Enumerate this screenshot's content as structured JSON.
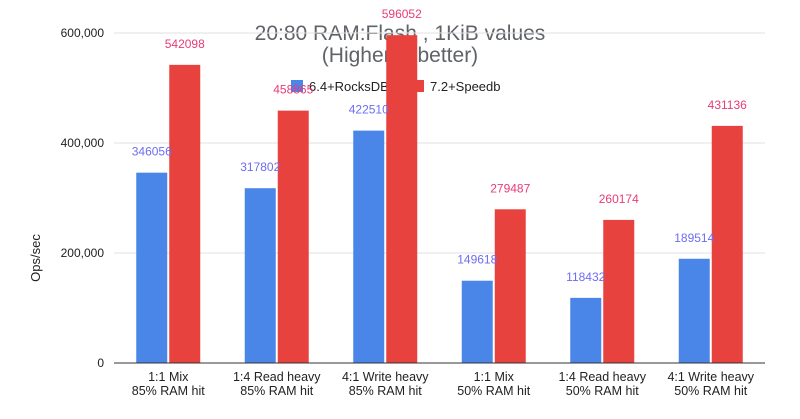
{
  "chart_data": {
    "type": "bar",
    "title": [
      "20:80 RAM:Flash , 1KiB values",
      "(Higher is better)"
    ],
    "ylabel": "Ops/sec",
    "xlabel": "",
    "ylim": [
      0,
      600000
    ],
    "yticks": [
      0,
      200000,
      400000,
      600000
    ],
    "ytick_labels": [
      "0",
      "200,000",
      "400,000",
      "600,000"
    ],
    "grid": true,
    "legend_position": "top",
    "categories": [
      [
        "1:1 Mix",
        "85% RAM hit"
      ],
      [
        "1:4 Read heavy",
        "85% RAM hit"
      ],
      [
        "4:1 Write heavy",
        "85% RAM hit"
      ],
      [
        "1:1 Mix",
        "50% RAM hit"
      ],
      [
        "1:4 Read heavy",
        "50% RAM hit"
      ],
      [
        "4:1 Write heavy",
        "50% RAM hit"
      ]
    ],
    "series": [
      {
        "name": "6.4+RocksDB",
        "color": "#4a86e8",
        "label_color": "#6d6df0",
        "values": [
          346056,
          317802,
          422510,
          149618,
          118432,
          189514
        ],
        "labels": [
          "346056",
          "317802",
          "422510",
          "149618",
          "118432",
          "189514"
        ]
      },
      {
        "name": "7.2+Speedb",
        "color": "#e8423f",
        "label_color": "#e83b7a",
        "values": [
          542098,
          458865,
          596052,
          279487,
          260174,
          431136
        ],
        "labels": [
          "542098",
          "458865",
          "596052",
          "279487",
          "260174",
          "431136"
        ]
      }
    ]
  }
}
